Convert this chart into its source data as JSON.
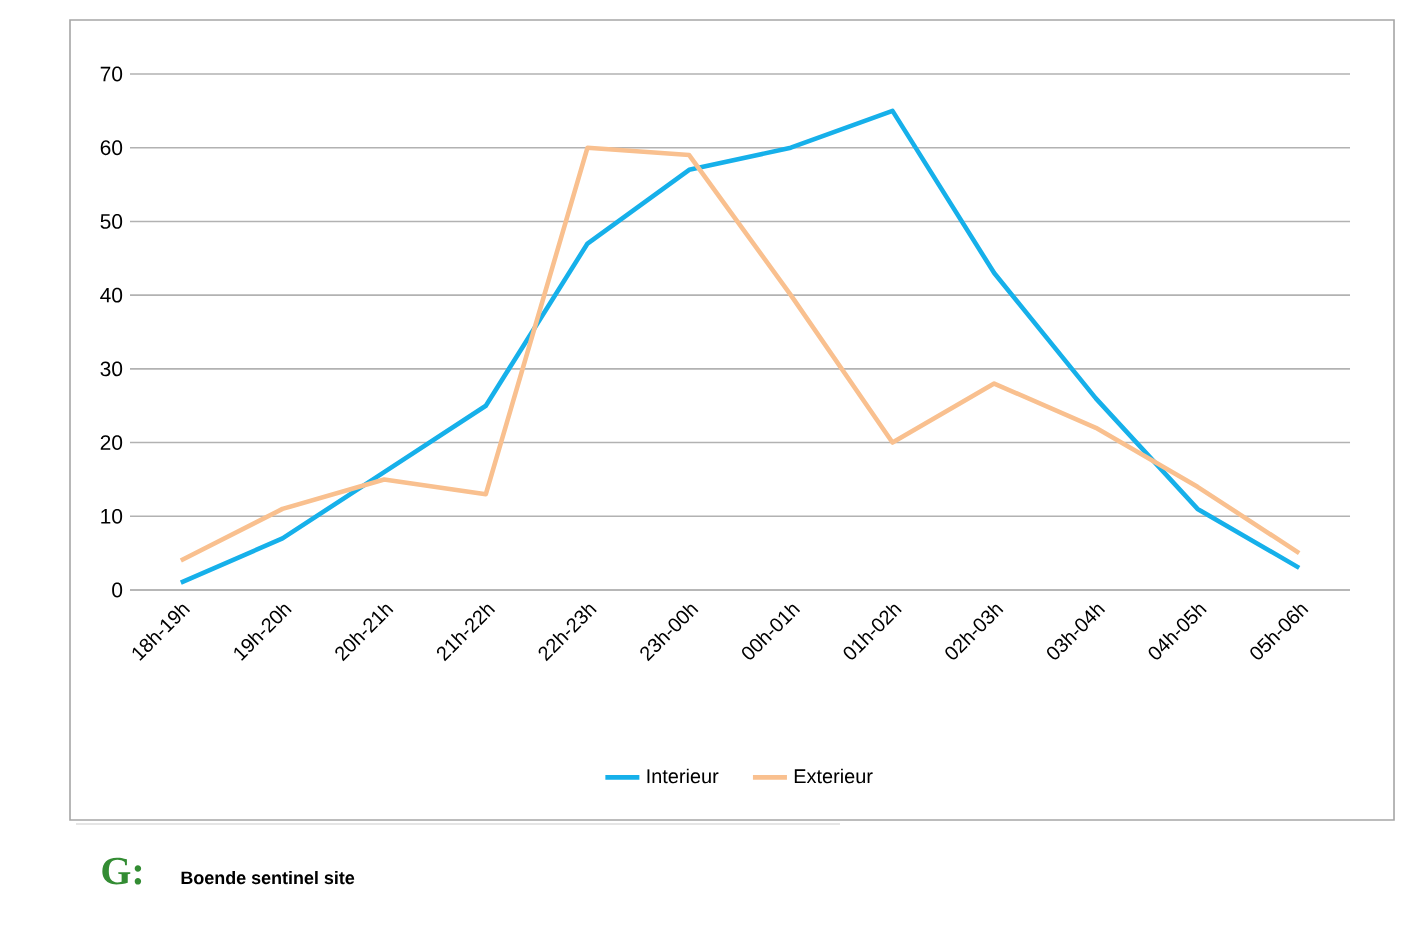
{
  "chart_data": {
    "type": "line",
    "categories": [
      "18h-19h",
      "19h-20h",
      "20h-21h",
      "21h-22h",
      "22h-23h",
      "23h-00h",
      "00h-01h",
      "01h-02h",
      "02h-03h",
      "03h-04h",
      "04h-05h",
      "05h-06h"
    ],
    "series": [
      {
        "name": "Interieur",
        "color": "#16b0ea",
        "values": [
          1,
          7,
          16,
          25,
          47,
          57,
          60,
          65,
          43,
          26,
          11,
          3
        ]
      },
      {
        "name": "Exterieur",
        "color": "#f9c08f",
        "values": [
          4,
          11,
          15,
          13,
          60,
          59,
          40,
          20,
          28,
          22,
          14,
          5
        ]
      }
    ],
    "ylim": [
      0,
      70
    ],
    "yticks": [
      0,
      10,
      20,
      30,
      40,
      50,
      60,
      70
    ],
    "grid": "y",
    "legend": "bottom",
    "marker": "none",
    "line_style": "solid",
    "annotations": [
      "G:",
      "Boende sentinel site"
    ]
  }
}
